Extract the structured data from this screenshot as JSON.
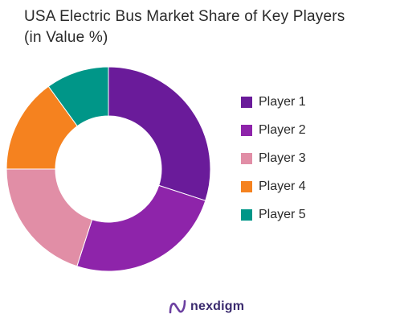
{
  "chart_data": {
    "type": "pie",
    "title": "USA Electric Bus Market Share of Key Players",
    "subtitle": "(in Value %)",
    "categories": [
      "Player 1",
      "Player 2",
      "Player 3",
      "Player 4",
      "Player 5"
    ],
    "values": [
      30,
      25,
      20,
      15,
      10
    ],
    "colors": [
      "#6a1b9a",
      "#8e24aa",
      "#e18ea6",
      "#f5821f",
      "#009688"
    ],
    "legend_placement": "right",
    "donut": true
  },
  "branding": {
    "logo_icon": "nexdigm-logo-icon",
    "name": "nexdigm"
  }
}
